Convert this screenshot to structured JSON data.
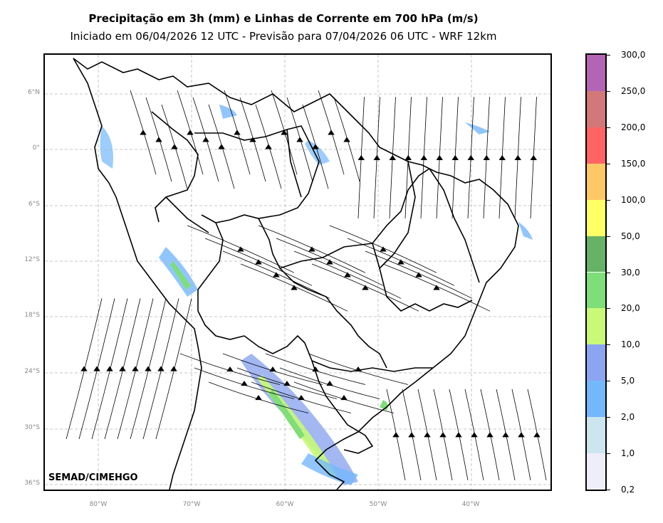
{
  "title": "Precipitação em 3h (mm) e Linhas de Corrente em 700 hPa (m/s)",
  "subtitle": "Iniciado em 06/04/2026 12 UTC - Previsão para 07/04/2026 06 UTC - WRF 12km",
  "credit": "SEMAD/CIMEHGO",
  "lat_ticks": [
    "6°N",
    "0°",
    "6°S",
    "12°S",
    "18°S",
    "24°S",
    "30°S",
    "36°S"
  ],
  "lon_ticks": [
    "80°W",
    "70°W",
    "60°W",
    "50°W",
    "40°W"
  ],
  "colorbar": {
    "labels": [
      "0,2",
      "1,0",
      "2,0",
      "5,0",
      "10,0",
      "20,0",
      "30,0",
      "50,0",
      "100,0",
      "150,0",
      "200,0",
      "250,0",
      "300,0"
    ],
    "colors": [
      "#eeeefa",
      "#cce6f0",
      "#74b8fc",
      "#8ca5f0",
      "#c8fa78",
      "#7ede78",
      "#66b266",
      "#ffff66",
      "#ffc866",
      "#ff6464",
      "#d27878",
      "#b464b4"
    ]
  },
  "colors": {
    "grid": "#b4b4b4",
    "border": "#000000"
  }
}
